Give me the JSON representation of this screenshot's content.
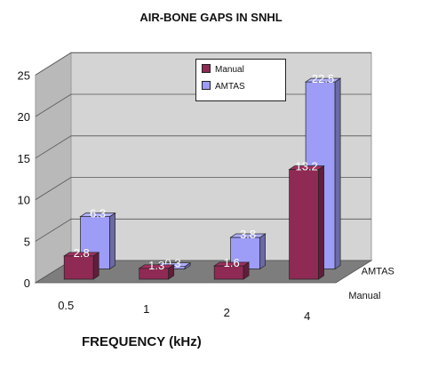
{
  "chart_data": {
    "type": "bar",
    "title": "AIR-BONE GAPS IN SNHL",
    "xlabel": "FREQUENCY (kHz)",
    "ylabel": "",
    "categories": [
      "0.5",
      "1",
      "2",
      "4"
    ],
    "ylim": [
      0,
      25
    ],
    "yticks": [
      "0",
      "5",
      "10",
      "15",
      "20",
      "25"
    ],
    "depth_labels": [
      "AMTAS",
      "Manual"
    ],
    "series": [
      {
        "name": "Manual",
        "values": [
          2.8,
          1.3,
          1.6,
          13.2
        ],
        "color": "#8f2a55"
      },
      {
        "name": "AMTAS",
        "values": [
          6.3,
          0.3,
          3.8,
          22.5
        ],
        "color": "#9d9cf6"
      }
    ],
    "legend": "top-center",
    "grid": true
  }
}
